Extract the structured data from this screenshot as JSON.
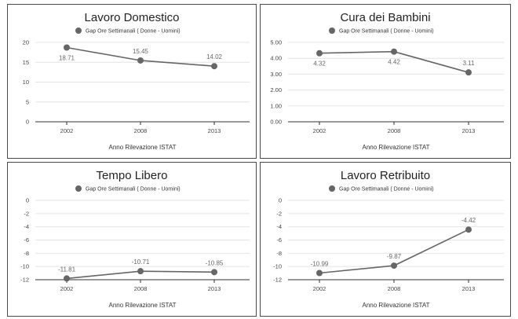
{
  "colors": {
    "series": "#666666",
    "grid": "#e4e4e4",
    "axis": "#333333"
  },
  "chart_data": [
    {
      "type": "line",
      "title": "Lavoro Domestico",
      "xlabel": "Anno Rilevazione ISTAT",
      "categories": [
        "2002",
        "2008",
        "2013"
      ],
      "series": [
        {
          "name": "Gap Ore Settimanali ( Donne - Uomini)",
          "values": [
            18.71,
            15.45,
            14.02
          ],
          "labels": [
            "18.71",
            "15.45",
            "14.02"
          ]
        }
      ],
      "ylim": [
        0,
        20
      ],
      "yticks": [
        0,
        5,
        10,
        15,
        20
      ],
      "ytick_labels": [
        "0",
        "5",
        "10",
        "15",
        "20"
      ],
      "legend": "top"
    },
    {
      "type": "line",
      "title": "Cura dei Bambini",
      "xlabel": "Anno Rilevazione ISTAT",
      "categories": [
        "2002",
        "2008",
        "2013"
      ],
      "series": [
        {
          "name": "Gap Ore Settimanali ( Donne - Uomini)",
          "values": [
            4.32,
            4.42,
            3.11
          ],
          "labels": [
            "4.32",
            "4.42",
            "3.11"
          ]
        }
      ],
      "ylim": [
        0,
        5
      ],
      "yticks": [
        0,
        1,
        2,
        3,
        4,
        5
      ],
      "ytick_labels": [
        "0.00",
        "1.00",
        "2.00",
        "3.00",
        "4.00",
        "5.00"
      ],
      "legend": "top"
    },
    {
      "type": "line",
      "title": "Tempo Libero",
      "xlabel": "Anno Rilevazione ISTAT",
      "categories": [
        "2002",
        "2008",
        "2013"
      ],
      "series": [
        {
          "name": "Gap Ore Settimanali ( Donne - Uomini)",
          "values": [
            -11.81,
            -10.71,
            -10.85
          ],
          "labels": [
            "-11.81",
            "-10.71",
            "-10.85"
          ]
        }
      ],
      "ylim": [
        -12,
        0
      ],
      "yticks": [
        0,
        -2,
        -4,
        -6,
        -8,
        -10,
        -12
      ],
      "ytick_labels": [
        "0",
        "-2",
        "-4",
        "-6",
        "-8",
        "-10",
        "-12"
      ],
      "legend": "top"
    },
    {
      "type": "line",
      "title": "Lavoro Retribuito",
      "xlabel": "Anno Rilevazione ISTAT",
      "categories": [
        "2002",
        "2008",
        "2013"
      ],
      "series": [
        {
          "name": "Gap Ore Settimanali ( Donne - Uomini)",
          "values": [
            -10.99,
            -9.87,
            -4.42
          ],
          "labels": [
            "-10.99",
            "-9.87",
            "-4.42"
          ]
        }
      ],
      "ylim": [
        -12,
        0
      ],
      "yticks": [
        0,
        -2,
        -4,
        -6,
        -8,
        -10,
        -12
      ],
      "ytick_labels": [
        "0",
        "-2",
        "-4",
        "-6",
        "-8",
        "-10",
        "-12"
      ],
      "legend": "top"
    }
  ]
}
